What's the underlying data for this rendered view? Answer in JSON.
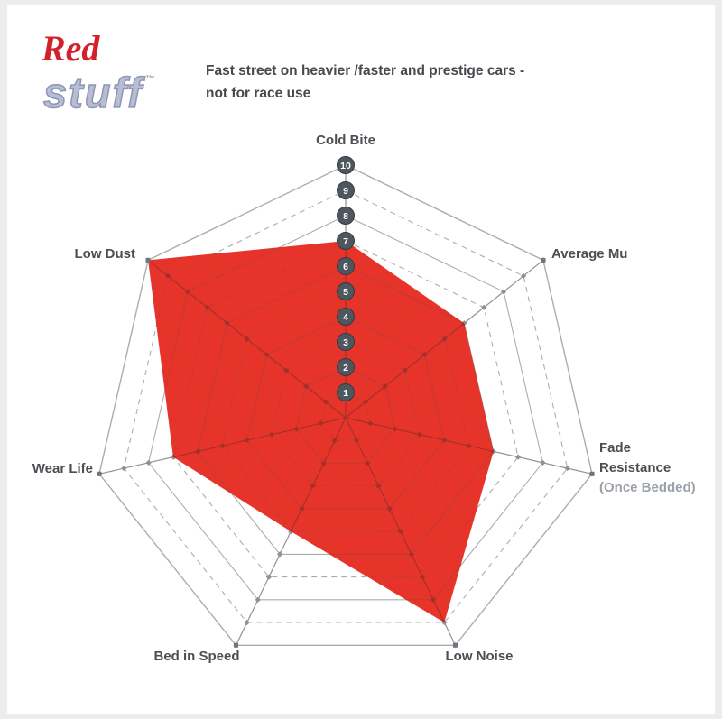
{
  "page": {
    "frame_color": "#ededed",
    "background": "#ffffff"
  },
  "logo": {
    "word_top": "Red",
    "word_bottom": "stuff",
    "trademark": "™",
    "color_top": "#d3202b",
    "color_bottom": "#b7bed3"
  },
  "header": {
    "description_lines": [
      "Fast street on heavier /faster and prestige cars -",
      "not for race use"
    ]
  },
  "chart_data": {
    "type": "radar",
    "title": "Fast street on heavier /faster and prestige cars - not for race use",
    "scale": {
      "min": 1,
      "max": 10,
      "rings": 10
    },
    "axes": [
      {
        "label": "Cold Bite",
        "value": 7
      },
      {
        "label": "Average Mu",
        "value": 6
      },
      {
        "label": "Fade Resistance",
        "sublabel": "(Once Bedded)",
        "value": 6
      },
      {
        "label": "Low Noise",
        "value": 9
      },
      {
        "label": "Bed in Speed",
        "value": 5
      },
      {
        "label": "Wear Life",
        "value": 7
      },
      {
        "label": "Low Dust",
        "value": 10
      }
    ],
    "series": [
      {
        "name": "Redstuff",
        "color": "#e7342b",
        "values": [
          7,
          6,
          6,
          9,
          5,
          7,
          10
        ]
      }
    ],
    "legend": false,
    "grid": {
      "ring_color": "#a9adb2",
      "spoke_color": "#8e9297",
      "tick_color": "#8e9297",
      "ring_color_inside_series": "#c23b2f",
      "spoke_color_inside_series": "#a5302a",
      "tick_color_inside_series": "#a5302a",
      "vertex_marker_color": "#70767c",
      "dashed_rings": "odd",
      "marker_fill": "#4e565e",
      "marker_stroke": "#343b42",
      "marker_text_color": "#ffffff"
    }
  }
}
